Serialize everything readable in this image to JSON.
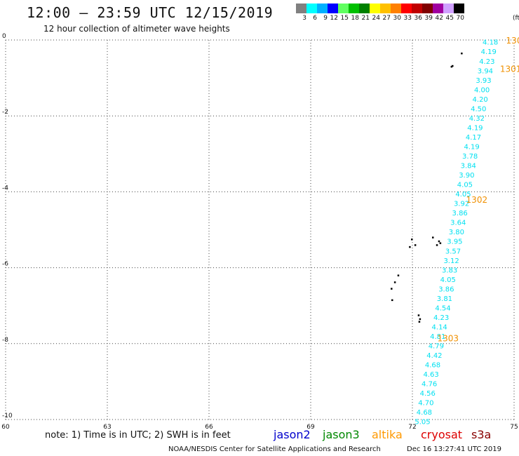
{
  "title": "12:00 – 23:59 UTC 12/15/2019",
  "subtitle": "12 hour collection of altimeter wave heights",
  "colorbar": {
    "labels": [
      "3",
      "6",
      "9",
      "12",
      "15",
      "18",
      "21",
      "24",
      "27",
      "30",
      "33",
      "36",
      "39",
      "42",
      "45",
      "70"
    ],
    "unit": "(ft)",
    "colors": [
      "#808080",
      "#00ffff",
      "#00b0ff",
      "#0000ff",
      "#60ff60",
      "#00c000",
      "#008000",
      "#ffff00",
      "#ffc000",
      "#ff8000",
      "#ff0000",
      "#c00000",
      "#800000",
      "#a000a0",
      "#d0a0ff",
      "#000000"
    ]
  },
  "note": "note: 1) Time is in UTC; 2) SWH is in feet",
  "legend": [
    {
      "label": "jason2",
      "color": "#0000cc"
    },
    {
      "label": "jason3",
      "color": "#008800"
    },
    {
      "label": "altika",
      "color": "#ff9900"
    },
    {
      "label": "cryosat",
      "color": "#dd0000"
    },
    {
      "label": "s3a",
      "color": "#880000"
    }
  ],
  "credit": "NOAA/NESDIS Center for Satellite Applications and Research",
  "timestamp": "Dec 16 13:27:41 UTC 2019",
  "chart_data": {
    "type": "scatter",
    "xlim": [
      60,
      75
    ],
    "ylim": [
      -10,
      0
    ],
    "x_ticks": [
      "60",
      "63",
      "66",
      "69",
      "72",
      "75"
    ],
    "y_ticks": [
      "0",
      "-2",
      "-4",
      "-6",
      "-8",
      "-10"
    ],
    "grid": true,
    "point_color": "#00e0f0",
    "track": [
      {
        "lon": 74.3,
        "lat": -0.05,
        "swh": "4.18"
      },
      {
        "lon": 74.25,
        "lat": -0.3,
        "swh": "4.19"
      },
      {
        "lon": 74.2,
        "lat": -0.55,
        "swh": "4.23"
      },
      {
        "lon": 74.15,
        "lat": -0.8,
        "swh": "3.94"
      },
      {
        "lon": 74.1,
        "lat": -1.05,
        "swh": "3.93"
      },
      {
        "lon": 74.05,
        "lat": -1.3,
        "swh": "4.00"
      },
      {
        "lon": 74.0,
        "lat": -1.55,
        "swh": "4.20"
      },
      {
        "lon": 73.95,
        "lat": -1.8,
        "swh": "4.50"
      },
      {
        "lon": 73.9,
        "lat": -2.05,
        "swh": "4.32"
      },
      {
        "lon": 73.85,
        "lat": -2.3,
        "swh": "4.19"
      },
      {
        "lon": 73.8,
        "lat": -2.55,
        "swh": "4.17"
      },
      {
        "lon": 73.75,
        "lat": -2.8,
        "swh": "4.19"
      },
      {
        "lon": 73.7,
        "lat": -3.05,
        "swh": "3.78"
      },
      {
        "lon": 73.65,
        "lat": -3.3,
        "swh": "3.84"
      },
      {
        "lon": 73.6,
        "lat": -3.55,
        "swh": "3.90"
      },
      {
        "lon": 73.55,
        "lat": -3.8,
        "swh": "4.05"
      },
      {
        "lon": 73.5,
        "lat": -4.05,
        "swh": "4.05"
      },
      {
        "lon": 73.45,
        "lat": -4.3,
        "swh": "3.92"
      },
      {
        "lon": 73.4,
        "lat": -4.55,
        "swh": "3.86"
      },
      {
        "lon": 73.35,
        "lat": -4.8,
        "swh": "3.64"
      },
      {
        "lon": 73.3,
        "lat": -5.05,
        "swh": "3.80"
      },
      {
        "lon": 73.25,
        "lat": -5.3,
        "swh": "3.95"
      },
      {
        "lon": 73.2,
        "lat": -5.55,
        "swh": "3.57"
      },
      {
        "lon": 73.15,
        "lat": -5.8,
        "swh": "3.12"
      },
      {
        "lon": 73.1,
        "lat": -6.05,
        "swh": "3.83"
      },
      {
        "lon": 73.05,
        "lat": -6.3,
        "swh": "4.05"
      },
      {
        "lon": 73.0,
        "lat": -6.55,
        "swh": "3.86"
      },
      {
        "lon": 72.95,
        "lat": -6.8,
        "swh": "3.81"
      },
      {
        "lon": 72.9,
        "lat": -7.05,
        "swh": "4.54"
      },
      {
        "lon": 72.85,
        "lat": -7.3,
        "swh": "4.23"
      },
      {
        "lon": 72.8,
        "lat": -7.55,
        "swh": "4.14"
      },
      {
        "lon": 72.75,
        "lat": -7.8,
        "swh": "4.81"
      },
      {
        "lon": 72.7,
        "lat": -8.05,
        "swh": "4.79"
      },
      {
        "lon": 72.65,
        "lat": -8.3,
        "swh": "4.42"
      },
      {
        "lon": 72.6,
        "lat": -8.55,
        "swh": "4.68"
      },
      {
        "lon": 72.55,
        "lat": -8.8,
        "swh": "4.63"
      },
      {
        "lon": 72.5,
        "lat": -9.05,
        "swh": "4.76"
      },
      {
        "lon": 72.45,
        "lat": -9.3,
        "swh": "4.56"
      },
      {
        "lon": 72.4,
        "lat": -9.55,
        "swh": "4.70"
      },
      {
        "lon": 72.35,
        "lat": -9.8,
        "swh": "4.68"
      },
      {
        "lon": 72.3,
        "lat": -10.05,
        "swh": "5.05"
      }
    ],
    "time_labels": [
      {
        "lon": 75.0,
        "lat": 0.0,
        "text": "130"
      },
      {
        "lon": 74.9,
        "lat": -0.75,
        "text": "1301"
      },
      {
        "lon": 73.9,
        "lat": -4.2,
        "text": "1302"
      },
      {
        "lon": 73.05,
        "lat": -7.85,
        "text": "1303"
      }
    ],
    "time_label_color": "#f09000",
    "land": [
      {
        "lon": 73.45,
        "lat": -0.35
      },
      {
        "lon": 73.15,
        "lat": -0.7
      },
      {
        "lon": 73.18,
        "lat": -0.68
      },
      {
        "lon": 72.78,
        "lat": -5.3
      },
      {
        "lon": 72.72,
        "lat": -5.4
      },
      {
        "lon": 72.82,
        "lat": -5.35
      },
      {
        "lon": 72.6,
        "lat": -5.2
      },
      {
        "lon": 72.08,
        "lat": -5.4
      },
      {
        "lon": 71.98,
        "lat": -5.25
      },
      {
        "lon": 71.92,
        "lat": -5.45
      },
      {
        "lon": 71.58,
        "lat": -6.2
      },
      {
        "lon": 71.48,
        "lat": -6.38
      },
      {
        "lon": 71.38,
        "lat": -6.55
      },
      {
        "lon": 71.4,
        "lat": -6.85
      },
      {
        "lon": 72.18,
        "lat": -7.25
      },
      {
        "lon": 72.22,
        "lat": -7.35
      },
      {
        "lon": 72.2,
        "lat": -7.42
      }
    ]
  }
}
